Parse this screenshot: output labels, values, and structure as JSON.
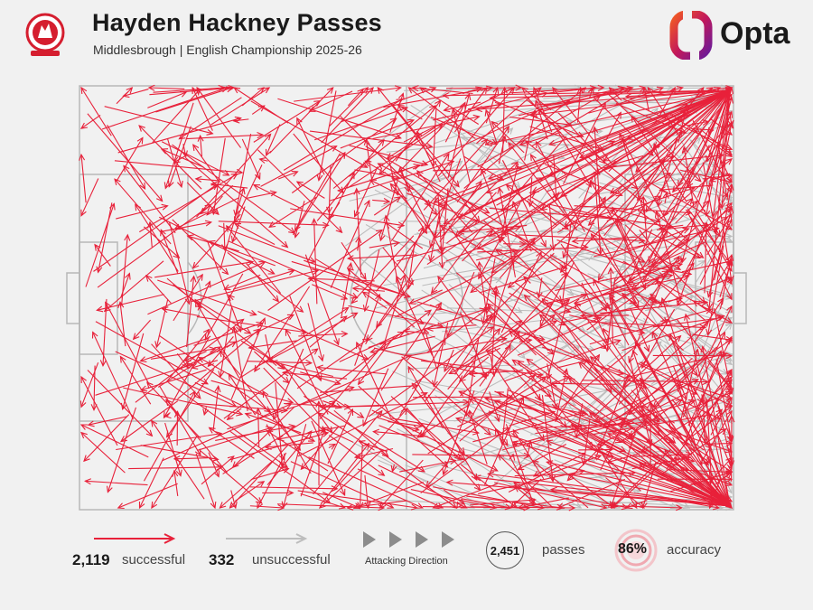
{
  "header": {
    "title": "Hayden Hackney Passes",
    "subtitle": "Middlesbrough | English Championship 2025-26",
    "brand": "Opta"
  },
  "legend": {
    "successful_count": "2,119",
    "successful_label": "successful",
    "unsuccessful_count": "332",
    "unsuccessful_label": "unsuccessful",
    "direction_label": "Attacking Direction",
    "passes_count": "2,451",
    "passes_label": "passes",
    "accuracy_value": "86%",
    "accuracy_label": "accuracy"
  },
  "colors": {
    "successful": "#e8213a",
    "unsuccessful": "#bdbdbd",
    "pitch_line": "#b7b7b7",
    "background": "#f1f1f1"
  },
  "chart_data": {
    "type": "pass-map",
    "attacking_direction": "left-to-right",
    "series": [
      {
        "name": "successful",
        "count": 2119
      },
      {
        "name": "unsuccessful",
        "count": 332
      }
    ],
    "total_passes": 2451,
    "accuracy_pct": 86
  }
}
